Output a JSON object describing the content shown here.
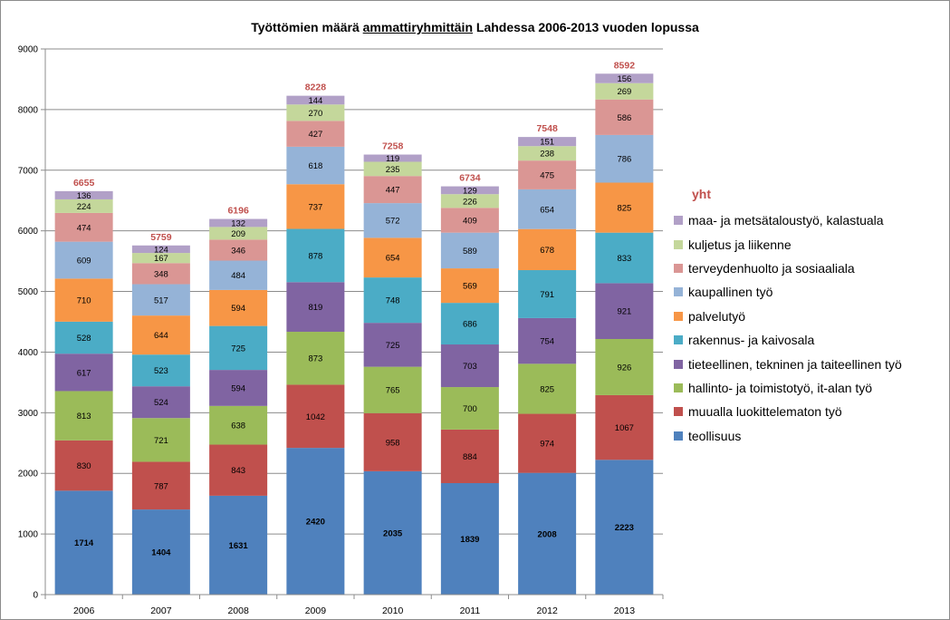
{
  "chart_data": {
    "type": "bar",
    "stacked": true,
    "title_parts": [
      "Työttömien määrä ",
      "ammattiryhmittäin",
      " Lahdessa 2006-2013 vuoden lopussa"
    ],
    "categories": [
      "2006",
      "2007",
      "2008",
      "2009",
      "2010",
      "2011",
      "2012",
      "2013"
    ],
    "ylim": [
      0,
      9000
    ],
    "yticks": [
      0,
      1000,
      2000,
      3000,
      4000,
      5000,
      6000,
      7000,
      8000,
      9000
    ],
    "grid": true,
    "legend_title": "yht",
    "legend_position": "right",
    "totals": [
      6655,
      5759,
      6196,
      8228,
      7258,
      6734,
      7548,
      8592
    ],
    "totals_color": "#c0504d",
    "series": [
      {
        "name": "teollisuus",
        "color": "#4f81bd",
        "values": [
          1714,
          1404,
          1631,
          2420,
          2035,
          1839,
          2008,
          2223
        ]
      },
      {
        "name": "muualla luokittelematon työ",
        "color": "#c0504d",
        "values": [
          830,
          787,
          843,
          1042,
          958,
          884,
          974,
          1067
        ]
      },
      {
        "name": "hallinto- ja toimistotyö, it-alan työ",
        "color": "#9bbb59",
        "values": [
          813,
          721,
          638,
          873,
          765,
          700,
          825,
          926
        ]
      },
      {
        "name": "tieteellinen, tekninen ja taiteellinen työ",
        "color": "#8064a2",
        "values": [
          617,
          524,
          594,
          819,
          725,
          703,
          754,
          921
        ]
      },
      {
        "name": "rakennus- ja kaivosala",
        "color": "#4bacc6",
        "values": [
          528,
          523,
          725,
          878,
          748,
          686,
          791,
          833
        ]
      },
      {
        "name": "palvelutyö",
        "color": "#f79646",
        "values": [
          710,
          644,
          594,
          737,
          654,
          569,
          678,
          825
        ]
      },
      {
        "name": "kaupallinen työ",
        "color": "#95b3d7",
        "values": [
          609,
          517,
          484,
          618,
          572,
          589,
          654,
          786
        ]
      },
      {
        "name": "terveydenhuolto ja sosiaaliala",
        "color": "#da9694",
        "values": [
          474,
          348,
          346,
          427,
          447,
          409,
          475,
          586
        ]
      },
      {
        "name": "kuljetus ja liikenne",
        "color": "#c4d79b",
        "values": [
          224,
          167,
          209,
          270,
          235,
          226,
          238,
          269
        ]
      },
      {
        "name": "maa- ja metsätaloustyö, kalastuala",
        "color": "#b1a0c7",
        "values": [
          136,
          124,
          132,
          144,
          119,
          129,
          151,
          156
        ]
      }
    ]
  }
}
